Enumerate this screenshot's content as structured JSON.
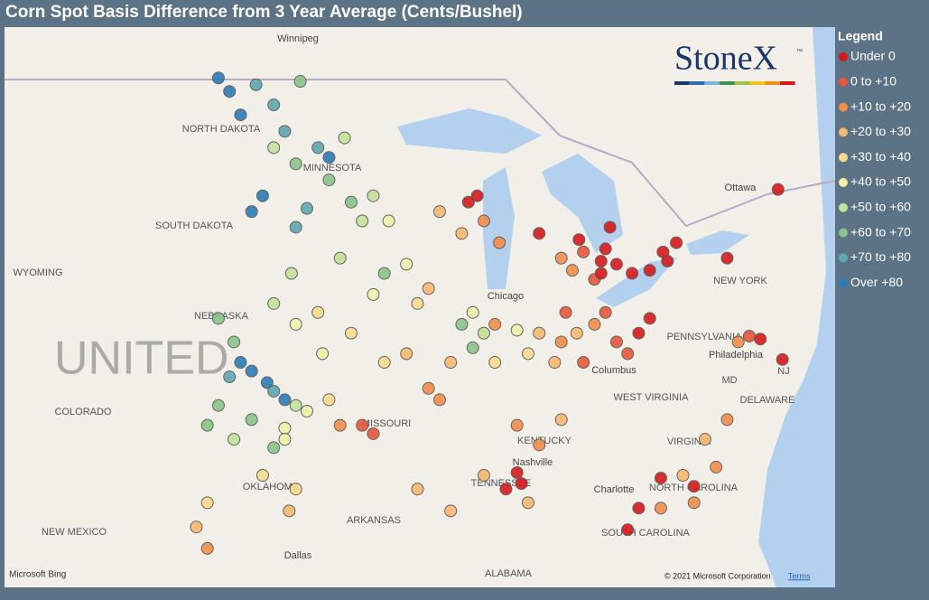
{
  "header": {
    "title": "Corn Spot Basis Difference from 3 Year Average (Cents/Bushel)"
  },
  "legend": {
    "title": "Legend",
    "items": [
      {
        "label": "Under 0",
        "color": "#d7191c"
      },
      {
        "label": "0 to +10",
        "color": "#e8553a"
      },
      {
        "label": "+10 to +20",
        "color": "#f28e4a"
      },
      {
        "label": "+20 to +30",
        "color": "#f7b870"
      },
      {
        "label": "+30 to +40",
        "color": "#f8dc8c"
      },
      {
        "label": "+40 to +50",
        "color": "#eef3a8"
      },
      {
        "label": "+50 to +60",
        "color": "#c3e29a"
      },
      {
        "label": "+60 to +70",
        "color": "#8ac48a"
      },
      {
        "label": "+70 to +80",
        "color": "#5fa8b0"
      },
      {
        "label": "Over +80",
        "color": "#2c7bb6"
      }
    ]
  },
  "logo": {
    "text": "StoneX",
    "tm": "™"
  },
  "map": {
    "labels": [
      "Winnipeg",
      "NORTH DAKOTA",
      "MINNESOTA",
      "SOUTH DAKOTA",
      "WYOMING",
      "NEBRASKA",
      "COLORADO",
      "MISSOURI",
      "KENTUCKY",
      "OKLAHOMA",
      "TENNESSEE",
      "ARKANSAS",
      "NEW MEXICO",
      "Dallas",
      "ALABAMA",
      "SOUTH CAROLINA",
      "NORTH CAROLINA",
      "VIRGINIA",
      "WEST VIRGINIA",
      "PENNSYLVANIA",
      "NEW YORK",
      "Ottawa",
      "Chicago",
      "Columbus",
      "Nashville",
      "Charlotte",
      "Philadelphia",
      "DELAWARE",
      "MD",
      "NJ",
      "UNITED"
    ],
    "points": [
      [
        -100,
        48.2,
        9
      ],
      [
        -99.5,
        47.5,
        9
      ],
      [
        -99,
        44.5,
        9
      ],
      [
        -98.5,
        45,
        9
      ],
      [
        -99.5,
        39.5,
        9
      ],
      [
        -99,
        39.2,
        9
      ],
      [
        -98.3,
        38.8,
        9
      ],
      [
        -97.5,
        38.2,
        9
      ],
      [
        -95.5,
        46.2,
        9
      ],
      [
        -100.5,
        48.6,
        9
      ],
      [
        -98,
        47.8,
        8
      ],
      [
        -97.5,
        47,
        8
      ],
      [
        -97,
        44,
        8
      ],
      [
        -100,
        39,
        8
      ],
      [
        -98,
        38.5,
        8
      ],
      [
        -96,
        46.5,
        8
      ],
      [
        -98.8,
        48.4,
        8
      ],
      [
        -96.5,
        44.6,
        8
      ],
      [
        -97,
        46,
        7
      ],
      [
        -95.5,
        45.5,
        7
      ],
      [
        -94.5,
        44.8,
        7
      ],
      [
        -99,
        37.5,
        7
      ],
      [
        -100.5,
        38,
        7
      ],
      [
        -101,
        37.3,
        7
      ],
      [
        -100.5,
        41,
        7
      ],
      [
        -93,
        42.5,
        7
      ],
      [
        -89.5,
        40.8,
        7
      ],
      [
        -89,
        40,
        7
      ],
      [
        -98,
        36.5,
        7
      ],
      [
        -96.8,
        48.5,
        7
      ],
      [
        -99.8,
        40.2,
        7
      ],
      [
        -94,
        44.2,
        6
      ],
      [
        -93.5,
        45,
        6
      ],
      [
        -95,
        43,
        6
      ],
      [
        -98,
        46.5,
        6
      ],
      [
        -98,
        41.5,
        6
      ],
      [
        -97,
        38,
        6
      ],
      [
        -88.5,
        40.5,
        6
      ],
      [
        -94.8,
        46.8,
        6
      ],
      [
        -97.2,
        42.5,
        6
      ],
      [
        -99.8,
        36.8,
        6
      ],
      [
        -93.5,
        41.8,
        5
      ],
      [
        -92,
        42.8,
        5
      ],
      [
        -97,
        40.8,
        5
      ],
      [
        -96.5,
        37.8,
        5
      ],
      [
        -97.5,
        37.2,
        5
      ],
      [
        -97.5,
        36.8,
        5
      ],
      [
        -89,
        41.2,
        5
      ],
      [
        -87,
        40.6,
        5
      ],
      [
        -92.8,
        44.2,
        5
      ],
      [
        -95.8,
        39.8,
        5
      ],
      [
        -96,
        41.2,
        4
      ],
      [
        -91.5,
        41.5,
        4
      ],
      [
        -93,
        39.5,
        4
      ],
      [
        -95.5,
        38.2,
        4
      ],
      [
        -98.5,
        35.5,
        4
      ],
      [
        -101,
        34.5,
        4
      ],
      [
        -88,
        39.5,
        4
      ],
      [
        -86.5,
        39.8,
        4
      ],
      [
        -97,
        35,
        4
      ],
      [
        -94.5,
        40.5,
        4
      ],
      [
        -89.5,
        43.8,
        3
      ],
      [
        -90.5,
        44.5,
        3
      ],
      [
        -91,
        42,
        3
      ],
      [
        -92,
        39.8,
        3
      ],
      [
        -90,
        39.5,
        3
      ],
      [
        -86,
        40.5,
        3
      ],
      [
        -85.3,
        39.5,
        3
      ],
      [
        -84.3,
        40.5,
        3
      ],
      [
        -85,
        37.5,
        3
      ],
      [
        -91.5,
        35,
        3
      ],
      [
        -101.5,
        33.6,
        3
      ],
      [
        -88.5,
        35.5,
        3
      ],
      [
        -86.5,
        34.5,
        3
      ],
      [
        -79.5,
        35.5,
        3
      ],
      [
        -78.5,
        36.8,
        3
      ],
      [
        -90,
        34.2,
        3
      ],
      [
        -97.3,
        34.2,
        3
      ],
      [
        -88.5,
        44.2,
        2
      ],
      [
        -87.8,
        43.5,
        2
      ],
      [
        -88,
        40.8,
        2
      ],
      [
        -85,
        40.2,
        2
      ],
      [
        -83.5,
        40.8,
        2
      ],
      [
        -90.5,
        38.2,
        2
      ],
      [
        -91,
        38.6,
        2
      ],
      [
        -95,
        37.3,
        2
      ],
      [
        -85,
        43,
        2
      ],
      [
        -84.5,
        42.6,
        2
      ],
      [
        -87,
        37.3,
        2
      ],
      [
        -86,
        36.6,
        2
      ],
      [
        -77.5,
        37.5,
        2
      ],
      [
        -78,
        35.8,
        2
      ],
      [
        -80.5,
        34.3,
        2
      ],
      [
        -77,
        40.2,
        2
      ],
      [
        -101,
        32.8,
        2
      ],
      [
        -79,
        34.5,
        2
      ],
      [
        -83,
        41.2,
        1
      ],
      [
        -82.5,
        40.2,
        1
      ],
      [
        -84,
        39.5,
        1
      ],
      [
        -83.5,
        42.3,
        1
      ],
      [
        -84,
        43.2,
        1
      ],
      [
        -84.8,
        41.2,
        1
      ],
      [
        -94,
        37.3,
        1
      ],
      [
        -76.5,
        40.4,
        1
      ],
      [
        -82,
        39.8,
        1
      ],
      [
        -93.5,
        37,
        1
      ],
      [
        -89.2,
        44.8,
        0
      ],
      [
        -88.8,
        45,
        0
      ],
      [
        -86,
        43.8,
        0
      ],
      [
        -83.2,
        42.9,
        0
      ],
      [
        -83,
        43.3,
        0
      ],
      [
        -82.8,
        44,
        0
      ],
      [
        -84.2,
        43.6,
        0
      ],
      [
        -81,
        42.6,
        0
      ],
      [
        -80.4,
        43.2,
        0
      ],
      [
        -79.8,
        43.5,
        0
      ],
      [
        -80.2,
        42.9,
        0
      ],
      [
        -81.8,
        42.5,
        0
      ],
      [
        -77.5,
        43,
        0
      ],
      [
        -76,
        40.3,
        0
      ],
      [
        -75,
        39.6,
        0
      ],
      [
        -87,
        35.6,
        0
      ],
      [
        -86.8,
        35.2,
        0
      ],
      [
        -87.5,
        35,
        0
      ],
      [
        -80.5,
        35.4,
        0
      ],
      [
        -79,
        35.1,
        0
      ],
      [
        -81.5,
        34.3,
        0
      ],
      [
        -82,
        33.5,
        0
      ],
      [
        -81.5,
        40.5,
        0
      ],
      [
        -81,
        41,
        0
      ],
      [
        -83.2,
        42.5,
        0
      ],
      [
        -75.2,
        45.2,
        0
      ],
      [
        -82.5,
        42.8,
        0
      ]
    ]
  },
  "footer": {
    "bing": "Microsoft Bing",
    "copyright": "© 2021 Microsoft Corporation",
    "terms": "Terms"
  }
}
